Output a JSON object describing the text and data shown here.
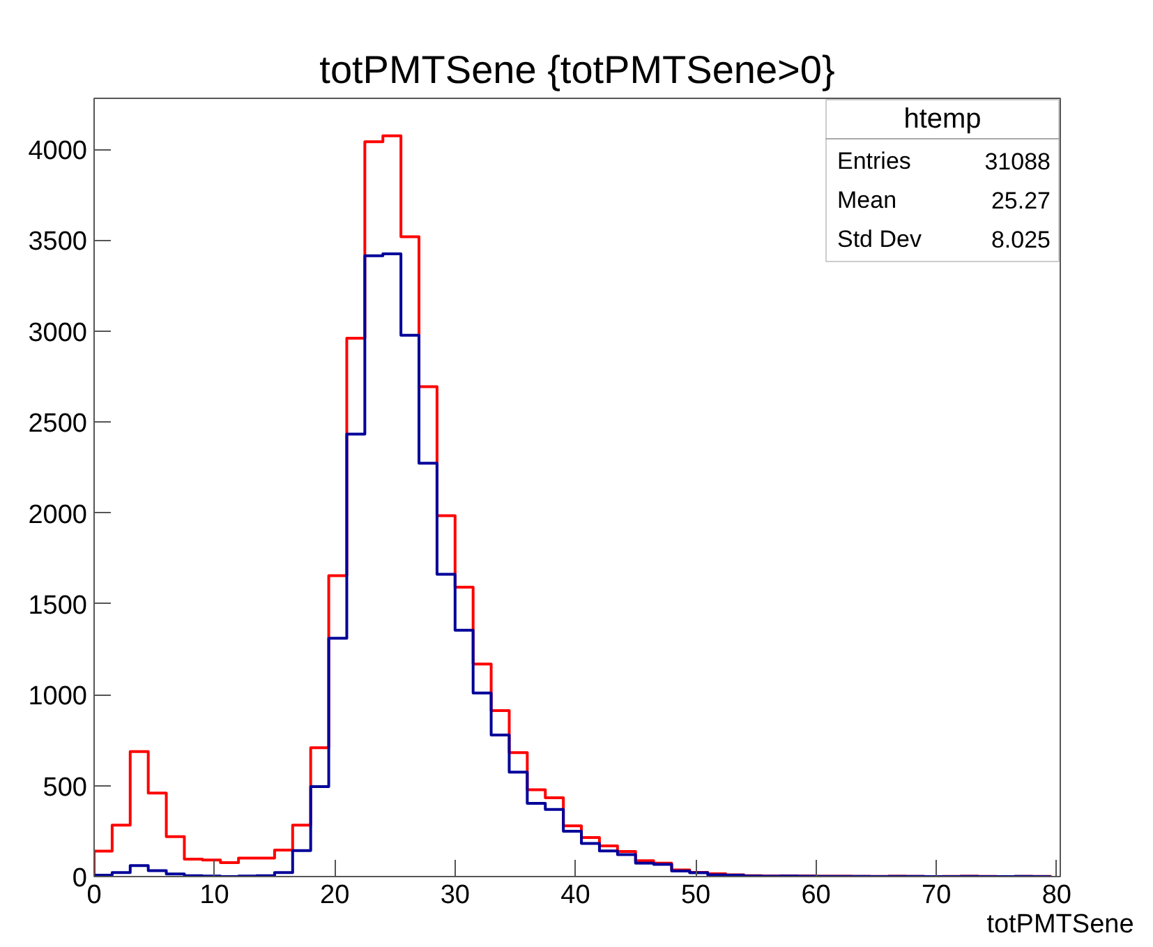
{
  "chart_data": {
    "type": "histogram",
    "title": "totPMTSene {totPMTSene>0}",
    "xlabel": "totPMTSene",
    "bins": [
      0,
      1.5,
      3,
      4.5,
      6,
      7.5,
      9,
      10.5,
      12,
      13.5,
      15,
      16.5,
      18,
      19.5,
      21,
      22.5,
      24,
      25.5,
      27,
      28.5,
      30,
      31.5,
      33,
      34.5,
      36,
      37.5,
      39,
      40.5,
      42,
      43.5,
      45,
      46.5,
      48,
      49.5,
      51,
      52.5,
      54,
      55.5,
      57,
      58.5,
      60,
      61.5,
      63,
      64.5,
      66,
      67.5,
      69,
      70.5,
      72,
      73.5,
      75,
      76.5,
      78,
      79.5
    ],
    "series": [
      {
        "color": "#ff0000",
        "values": [
          140,
          283,
          687,
          459,
          220,
          96,
          91,
          77,
          102,
          102,
          146,
          283,
          709,
          1655,
          2961,
          4041,
          4074,
          3519,
          2694,
          1985,
          1592,
          1169,
          913,
          682,
          477,
          433,
          279,
          215,
          169,
          138,
          87,
          74,
          36,
          23,
          15,
          10,
          5,
          3,
          4,
          3,
          2,
          2,
          1,
          1,
          2,
          1,
          0,
          1,
          2,
          1,
          0,
          1,
          1
        ]
      },
      {
        "color": "#000099",
        "values": [
          8,
          22,
          60,
          33,
          14,
          5,
          3,
          0,
          3,
          5,
          22,
          143,
          495,
          1311,
          2433,
          3414,
          3425,
          2977,
          2273,
          1663,
          1355,
          1010,
          779,
          574,
          403,
          369,
          249,
          182,
          141,
          121,
          74,
          67,
          31,
          21,
          10,
          8,
          3,
          2,
          3,
          2,
          1,
          1,
          1,
          0,
          1,
          1,
          0,
          0,
          1,
          0,
          0,
          1,
          0
        ]
      }
    ],
    "xlim": [
      0,
      80.3
    ],
    "ylim": [
      0,
      4280
    ],
    "xticks": [
      0,
      10,
      20,
      30,
      40,
      50,
      60,
      70,
      80
    ],
    "yticks": [
      0,
      500,
      1000,
      1500,
      2000,
      2500,
      3000,
      3500,
      4000
    ],
    "annotations": [
      "htemp",
      "Entries",
      "31088",
      "Mean",
      "25.27",
      "Std Dev",
      "8.025"
    ],
    "grid": false
  }
}
